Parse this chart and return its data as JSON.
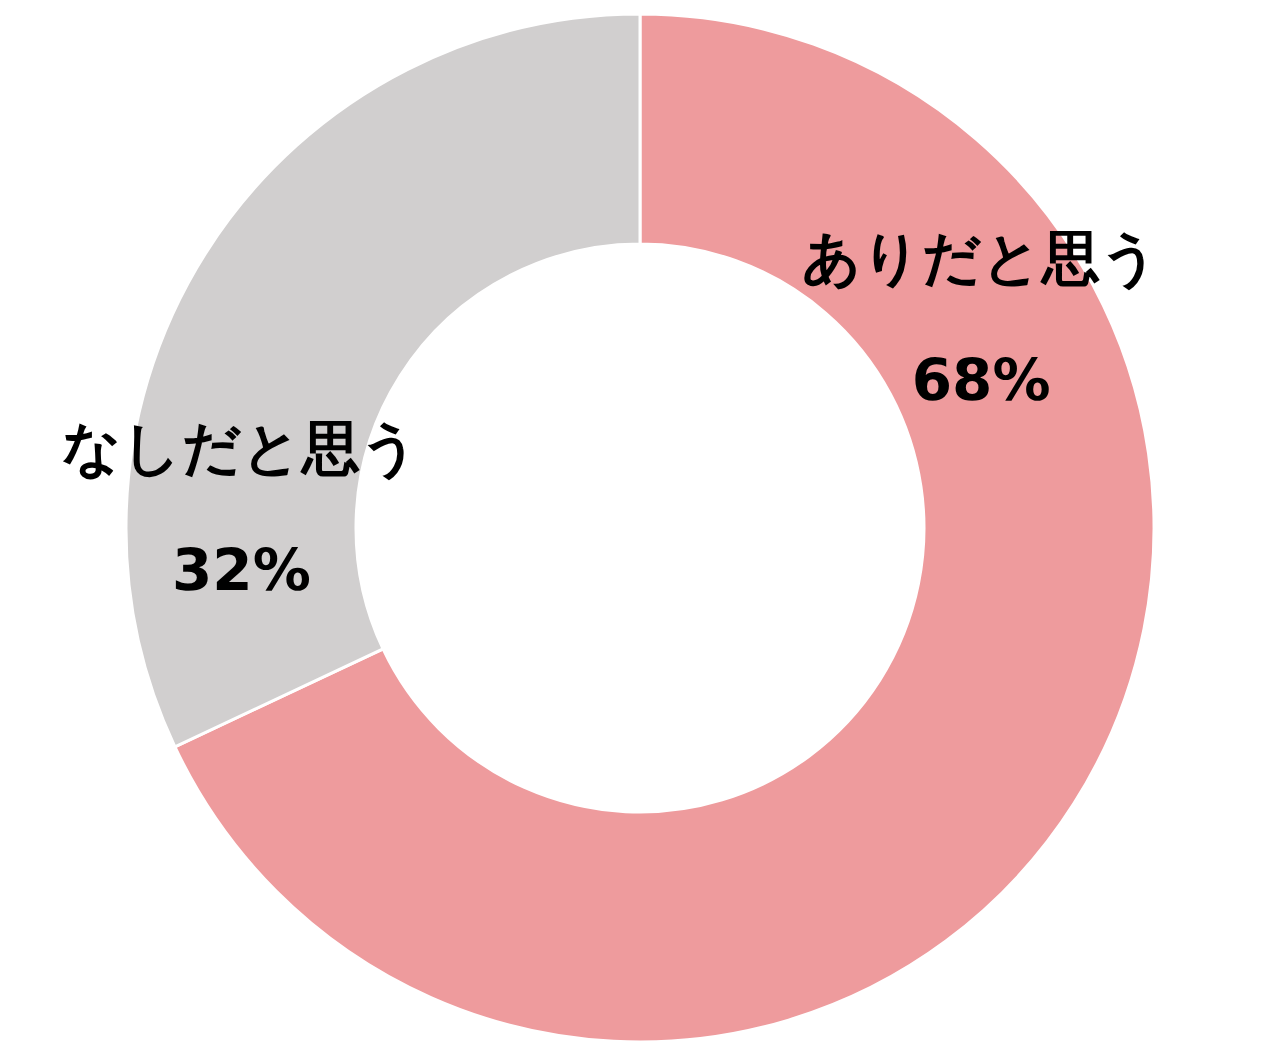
{
  "chart_data": {
    "type": "donut",
    "categories": [
      "ありだと思う",
      "なしだと思う"
    ],
    "values": [
      68,
      32
    ],
    "colors": [
      "#ee9b9d",
      "#d1cfcf"
    ],
    "value_labels": [
      "68%",
      "32%"
    ]
  }
}
